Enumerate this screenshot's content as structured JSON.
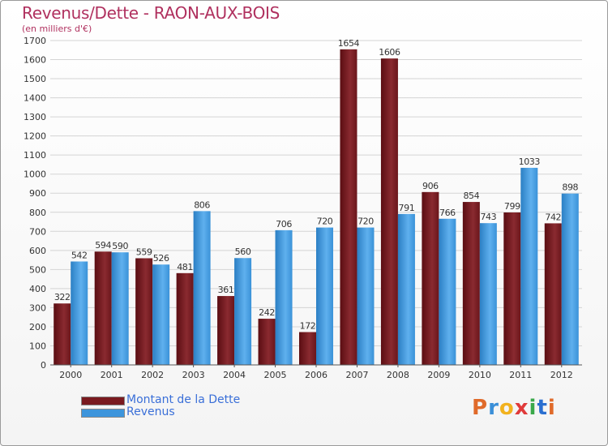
{
  "header": {
    "title": "Revenus/Dette - RAON-AUX-BOIS",
    "subtitle": "(en milliers d'€)"
  },
  "chart_data": {
    "type": "bar",
    "title": "Revenus/Dette - RAON-AUX-BOIS",
    "ylabel": "(en milliers d'€)",
    "xlabel": "",
    "ylim": [
      0,
      1700
    ],
    "yticks": [
      0,
      100,
      200,
      300,
      400,
      500,
      600,
      700,
      800,
      900,
      1000,
      1100,
      1200,
      1300,
      1400,
      1500,
      1600,
      1700
    ],
    "grid": true,
    "categories": [
      "2000",
      "2001",
      "2002",
      "2003",
      "2004",
      "2005",
      "2006",
      "2007",
      "2008",
      "2009",
      "2010",
      "2011",
      "2012"
    ],
    "series": [
      {
        "name": "Montant de la Dette",
        "color": "#7a1a1f",
        "values": [
          322,
          594,
          559,
          481,
          361,
          242,
          172,
          1654,
          1606,
          906,
          854,
          799,
          742
        ]
      },
      {
        "name": "Revenus",
        "color": "#3d95dc",
        "values": [
          542,
          590,
          526,
          806,
          560,
          706,
          720,
          720,
          791,
          766,
          743,
          1033,
          898
        ]
      }
    ],
    "legend_position": "bottom-left"
  },
  "legend": {
    "items": [
      {
        "label": "Montant de la Dette",
        "color": "#7a1a1f"
      },
      {
        "label": "Revenus",
        "color": "#3d95dc"
      }
    ]
  },
  "logo": {
    "letters": [
      "P",
      "r",
      "o",
      "x",
      "i",
      "t",
      "i"
    ],
    "colors": [
      "#e06a2a",
      "#3a8fd8",
      "#f2b21e",
      "#e03a3a",
      "#3aa84a",
      "#2a6fd0",
      "#e06a2a"
    ]
  }
}
